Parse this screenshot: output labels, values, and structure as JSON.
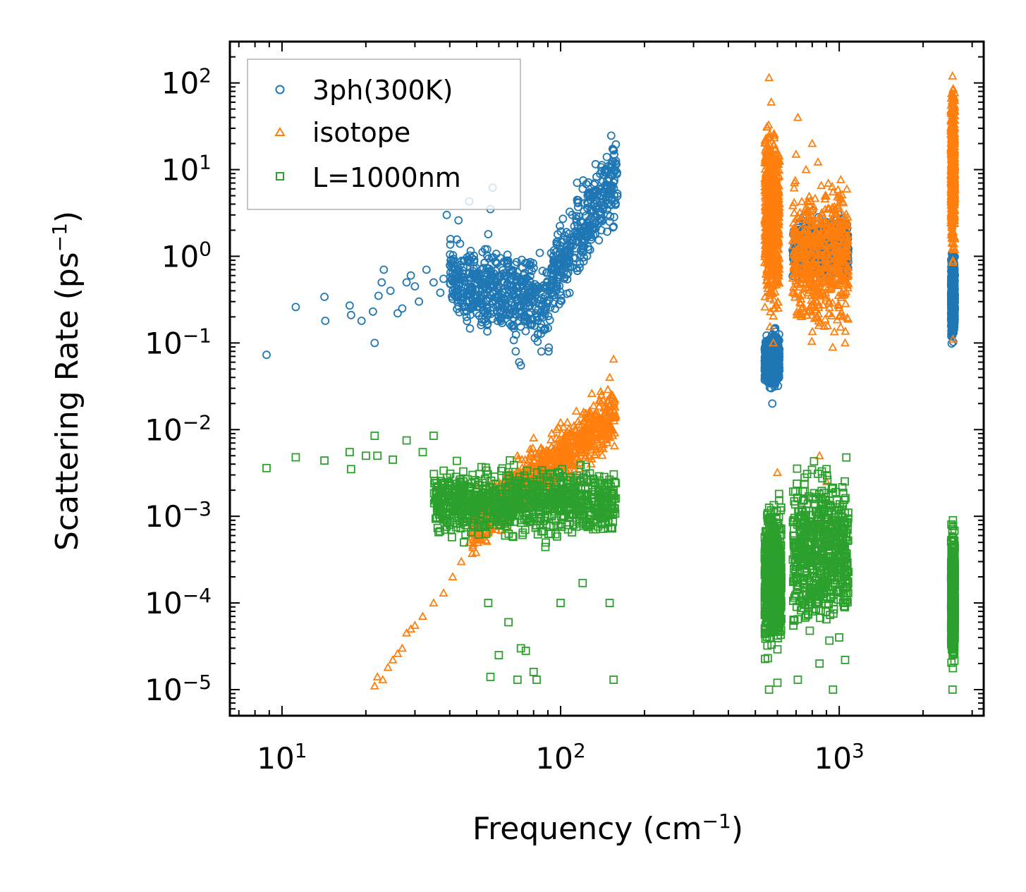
{
  "chart_data": {
    "type": "scatter",
    "xscale": "log",
    "yscale": "log",
    "xlabel": "Frequency (cm",
    "xlabel_sup": "−1",
    "xlabel_close": ")",
    "ylabel": "Scattering Rate (ps",
    "ylabel_sup": "−1",
    "ylabel_close": ")",
    "xlim": [
      6.5,
      3300
    ],
    "ylim": [
      5e-06,
      300
    ],
    "x_ticks": [
      {
        "base": "10",
        "exp": "1"
      },
      {
        "base": "10",
        "exp": "2"
      },
      {
        "base": "10",
        "exp": "3"
      }
    ],
    "y_ticks": [
      {
        "base": "10",
        "exp": "2"
      },
      {
        "base": "10",
        "exp": "1"
      },
      {
        "base": "10",
        "exp": "0"
      },
      {
        "base": "10",
        "exp": "−1"
      },
      {
        "base": "10",
        "exp": "−2"
      },
      {
        "base": "10",
        "exp": "−3"
      },
      {
        "base": "10",
        "exp": "−4"
      },
      {
        "base": "10",
        "exp": "−5"
      }
    ],
    "legend_position": "top-left",
    "series": [
      {
        "name": "3ph(300K)",
        "marker": "circle",
        "color": "#1f77b4",
        "points": [
          [
            8.8,
            0.073
          ],
          [
            11.2,
            0.26
          ],
          [
            14.2,
            0.34
          ],
          [
            14.3,
            0.18
          ],
          [
            17.5,
            0.27
          ],
          [
            17.7,
            0.21
          ],
          [
            19.3,
            0.18
          ],
          [
            21.2,
            0.23
          ],
          [
            21.5,
            0.1
          ],
          [
            22.2,
            0.35
          ],
          [
            22.8,
            0.5
          ],
          [
            23.2,
            0.7
          ],
          [
            24.5,
            0.4
          ],
          [
            26,
            0.22
          ],
          [
            27,
            0.25
          ],
          [
            28,
            0.5
          ],
          [
            29,
            0.6
          ],
          [
            30,
            0.45
          ],
          [
            31,
            0.3
          ],
          [
            33,
            0.7
          ],
          [
            35,
            0.5
          ],
          [
            37,
            0.38
          ],
          [
            38,
            0.55
          ],
          [
            39,
            3.0
          ],
          [
            41,
            0.4
          ],
          [
            43,
            2.6
          ],
          [
            46,
            0.3
          ],
          [
            47,
            4.3
          ],
          [
            52,
            0.7
          ],
          [
            55,
            1.8
          ],
          [
            56,
            3.5
          ],
          [
            57,
            6.2
          ],
          [
            60,
            0.4
          ],
          [
            64,
            0.6
          ],
          [
            66,
            0.25
          ],
          [
            69,
            0.08
          ],
          [
            71,
            0.06
          ],
          [
            72,
            0.055
          ],
          [
            75,
            0.2
          ],
          [
            80,
            0.3
          ],
          [
            85,
            0.15
          ],
          [
            90,
            0.4
          ],
          [
            95,
            0.7
          ],
          [
            100,
            1.2
          ],
          [
            105,
            1.9
          ],
          [
            110,
            3.0
          ],
          [
            115,
            4.2
          ],
          [
            120,
            6.0
          ],
          [
            125,
            5.0
          ],
          [
            130,
            5.5
          ],
          [
            140,
            2.0
          ],
          [
            150,
            2.5
          ],
          [
            155,
            2.2
          ],
          [
            560,
            0.06
          ],
          [
            570,
            0.03
          ],
          [
            575,
            0.02
          ],
          [
            580,
            0.12
          ],
          [
            600,
            0.08
          ],
          [
            700,
            1.5
          ],
          [
            720,
            1.0
          ],
          [
            760,
            0.8
          ],
          [
            800,
            1.2
          ],
          [
            900,
            2.0
          ],
          [
            950,
            1.5
          ],
          [
            1000,
            2.5
          ],
          [
            1050,
            1.3
          ],
          [
            2550,
            0.4
          ],
          [
            2560,
            0.15
          ],
          [
            2570,
            0.8
          ]
        ],
        "clusters": [
          {
            "x_min": 40,
            "x_max": 160,
            "y_center": 0.55,
            "y_spread": 0.55
          },
          {
            "x_min": 540,
            "x_max": 610,
            "y_center": 0.065,
            "y_spread": 0.25
          },
          {
            "x_min": 680,
            "x_max": 1080,
            "y_center": 1.2,
            "y_spread": 0.3
          },
          {
            "x_min": 2520,
            "x_max": 2600,
            "y_center": 0.35,
            "y_spread": 0.4
          }
        ]
      },
      {
        "name": "isotope",
        "marker": "triangle",
        "color": "#ff7f0e",
        "points": [
          [
            21.5,
            1.1e-05
          ],
          [
            22,
            1.4e-05
          ],
          [
            23,
            1.3e-05
          ],
          [
            24,
            1.8e-05
          ],
          [
            25,
            2.2e-05
          ],
          [
            26,
            2.6e-05
          ],
          [
            27,
            3e-05
          ],
          [
            28,
            4.5e-05
          ],
          [
            29,
            5e-05
          ],
          [
            30,
            5.5e-05
          ],
          [
            32,
            7e-05
          ],
          [
            35,
            0.0001
          ],
          [
            38,
            0.00013
          ],
          [
            41,
            0.0002
          ],
          [
            44,
            0.0003
          ],
          [
            47,
            0.0005
          ],
          [
            50,
            0.0008
          ],
          [
            55,
            0.0015
          ],
          [
            60,
            0.0025
          ],
          [
            70,
            0.005
          ],
          [
            80,
            0.008
          ],
          [
            100,
            0.012
          ],
          [
            120,
            0.015
          ],
          [
            140,
            0.025
          ],
          [
            150,
            0.04
          ],
          [
            155,
            0.065
          ],
          [
            156,
            0.0065
          ],
          [
            560,
            115
          ],
          [
            570,
            60
          ],
          [
            580,
            0.1
          ],
          [
            600,
            0.0032
          ],
          [
            700,
            15
          ],
          [
            710,
            40
          ],
          [
            760,
            10
          ],
          [
            800,
            20
          ],
          [
            850,
            0.005
          ],
          [
            900,
            0.0025
          ],
          [
            950,
            2.0
          ],
          [
            1000,
            1.2
          ],
          [
            1050,
            0.1
          ],
          [
            2550,
            120
          ],
          [
            2560,
            0.11
          ],
          [
            2570,
            30
          ]
        ],
        "clusters": [
          {
            "x_min": 48,
            "x_max": 158,
            "y_center": 0.006,
            "y_spread": 0.35
          },
          {
            "x_min": 540,
            "x_max": 610,
            "y_center": 3.0,
            "y_spread": 0.9
          },
          {
            "x_min": 680,
            "x_max": 1080,
            "y_center": 1.0,
            "y_spread": 0.8
          },
          {
            "x_min": 2520,
            "x_max": 2600,
            "y_center": 10,
            "y_spread": 0.8
          }
        ]
      },
      {
        "name": "L=1000nm",
        "marker": "square",
        "color": "#2ca02c",
        "points": [
          [
            8.8,
            0.0036
          ],
          [
            11.2,
            0.0048
          ],
          [
            14.2,
            0.0044
          ],
          [
            17.5,
            0.0055
          ],
          [
            17.7,
            0.0035
          ],
          [
            20,
            0.005
          ],
          [
            21.5,
            0.0085
          ],
          [
            22,
            0.005
          ],
          [
            25,
            0.0045
          ],
          [
            28,
            0.0075
          ],
          [
            32,
            0.0055
          ],
          [
            35,
            0.0085
          ],
          [
            40,
            0.0008
          ],
          [
            45,
            0.0005
          ],
          [
            55,
            0.0001
          ],
          [
            56,
            1.4e-05
          ],
          [
            60,
            2.5e-05
          ],
          [
            65,
            6e-05
          ],
          [
            70,
            1.3e-05
          ],
          [
            72,
            3e-05
          ],
          [
            75,
            2.8e-05
          ],
          [
            80,
            1.6e-05
          ],
          [
            82,
            1.3e-05
          ],
          [
            100,
            0.0001
          ],
          [
            120,
            0.00017
          ],
          [
            150,
            0.0001
          ],
          [
            155,
            1.3e-05
          ],
          [
            560,
            1e-05
          ],
          [
            570,
            5e-05
          ],
          [
            600,
            1.2e-05
          ],
          [
            700,
            0.0002
          ],
          [
            710,
            1.3e-05
          ],
          [
            800,
            8e-05
          ],
          [
            850,
            2e-05
          ],
          [
            900,
            0.0035
          ],
          [
            950,
            1e-05
          ],
          [
            1000,
            4e-05
          ],
          [
            1050,
            2.2e-05
          ],
          [
            2550,
            1e-05
          ],
          [
            2560,
            0.0009
          ],
          [
            2570,
            5e-05
          ]
        ],
        "clusters": [
          {
            "x_min": 35,
            "x_max": 158,
            "y_center": 0.0015,
            "y_spread": 0.35
          },
          {
            "x_min": 540,
            "x_max": 620,
            "y_center": 0.0002,
            "y_spread": 0.7
          },
          {
            "x_min": 680,
            "x_max": 1080,
            "y_center": 0.0004,
            "y_spread": 0.75
          },
          {
            "x_min": 2520,
            "x_max": 2600,
            "y_center": 0.00012,
            "y_spread": 0.6
          }
        ]
      }
    ]
  }
}
